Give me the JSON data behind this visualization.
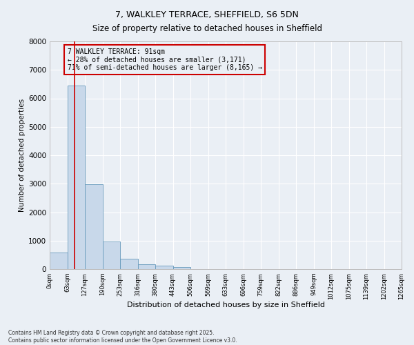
{
  "title_line1": "7, WALKLEY TERRACE, SHEFFIELD, S6 5DN",
  "title_line2": "Size of property relative to detached houses in Sheffield",
  "xlabel": "Distribution of detached houses by size in Sheffield",
  "ylabel": "Number of detached properties",
  "bar_color": "#c8d8ea",
  "bar_edge_color": "#6699bb",
  "bar_values": [
    580,
    6450,
    2980,
    960,
    360,
    175,
    110,
    65,
    10,
    5,
    2,
    1,
    1,
    0,
    0,
    0,
    0,
    0,
    0,
    0
  ],
  "bin_labels": [
    "0sqm",
    "63sqm",
    "127sqm",
    "190sqm",
    "253sqm",
    "316sqm",
    "380sqm",
    "443sqm",
    "506sqm",
    "569sqm",
    "633sqm",
    "696sqm",
    "759sqm",
    "822sqm",
    "886sqm",
    "949sqm",
    "1012sqm",
    "1075sqm",
    "1139sqm",
    "1202sqm",
    "1265sqm"
  ],
  "ylim": [
    0,
    8000
  ],
  "yticks": [
    0,
    1000,
    2000,
    3000,
    4000,
    5000,
    6000,
    7000,
    8000
  ],
  "property_line_x": 1.4,
  "property_line_color": "#cc0000",
  "annotation_text": "7 WALKLEY TERRACE: 91sqm\n← 28% of detached houses are smaller (3,171)\n71% of semi-detached houses are larger (8,165) →",
  "annotation_box_color": "#cc0000",
  "footer_line1": "Contains HM Land Registry data © Crown copyright and database right 2025.",
  "footer_line2": "Contains public sector information licensed under the Open Government Licence v3.0.",
  "background_color": "#eaeff5",
  "grid_color": "#ffffff"
}
